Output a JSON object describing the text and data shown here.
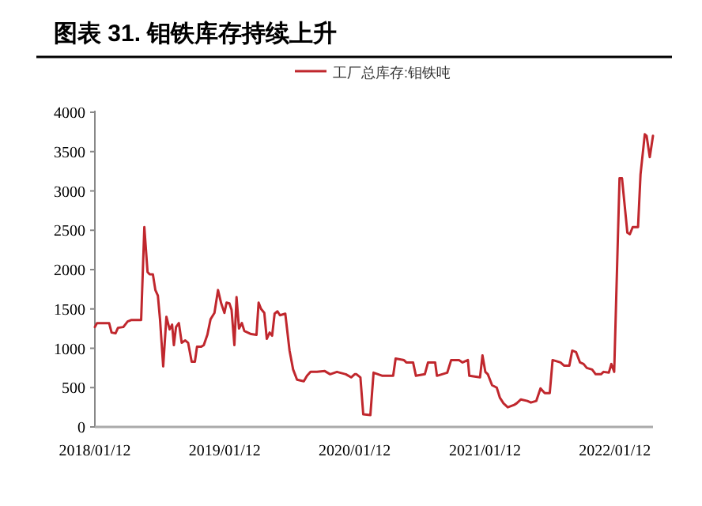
{
  "chart_data": {
    "type": "line",
    "title": "图表 31. 钼铁库存持续上升",
    "x": [
      "2018-01-12",
      "2018-01-18",
      "2018-02-21",
      "2018-02-28",
      "2018-03-11",
      "2018-03-18",
      "2018-04-02",
      "2018-04-14",
      "2018-04-25",
      "2018-05-22",
      "2018-05-31",
      "2018-06-09",
      "2018-06-15",
      "2018-06-24",
      "2018-07-01",
      "2018-07-08",
      "2018-07-14",
      "2018-07-23",
      "2018-08-01",
      "2018-08-10",
      "2018-08-17",
      "2018-08-22",
      "2018-08-28",
      "2018-09-05",
      "2018-09-13",
      "2018-09-23",
      "2018-10-01",
      "2018-10-11",
      "2018-10-20",
      "2018-10-26",
      "2018-11-07",
      "2018-11-14",
      "2018-11-24",
      "2018-12-03",
      "2018-12-14",
      "2018-12-24",
      "2019-01-02",
      "2019-01-11",
      "2019-01-17",
      "2019-01-25",
      "2019-01-31",
      "2019-02-08",
      "2019-02-14",
      "2019-02-21",
      "2019-03-01",
      "2019-03-08",
      "2019-03-27",
      "2019-04-11",
      "2019-04-17",
      "2019-04-24",
      "2019-05-03",
      "2019-05-10",
      "2019-05-18",
      "2019-05-25",
      "2019-06-01",
      "2019-06-09",
      "2019-06-16",
      "2019-07-01",
      "2019-07-13",
      "2019-07-23",
      "2019-08-03",
      "2019-08-22",
      "2019-08-31",
      "2019-09-10",
      "2019-09-28",
      "2019-10-20",
      "2019-11-04",
      "2019-11-23",
      "2019-12-18",
      "2020-01-02",
      "2020-01-12",
      "2020-01-17",
      "2020-01-28",
      "2020-02-05",
      "2020-02-25",
      "2020-03-05",
      "2020-03-30",
      "2020-04-29",
      "2020-05-06",
      "2020-05-29",
      "2020-06-05",
      "2020-06-24",
      "2020-07-02",
      "2020-07-27",
      "2020-08-05",
      "2020-08-25",
      "2020-08-30",
      "2020-09-28",
      "2020-10-09",
      "2020-10-31",
      "2020-11-10",
      "2020-11-25",
      "2020-11-29",
      "2020-12-29",
      "2021-01-05",
      "2021-01-13",
      "2021-01-20",
      "2021-02-01",
      "2021-02-14",
      "2021-02-23",
      "2021-03-05",
      "2021-03-17",
      "2021-04-04",
      "2021-04-11",
      "2021-04-23",
      "2021-05-11",
      "2021-05-21",
      "2021-06-05",
      "2021-06-17",
      "2021-06-29",
      "2021-07-13",
      "2021-07-21",
      "2021-08-12",
      "2021-08-22",
      "2021-09-06",
      "2021-09-14",
      "2021-09-25",
      "2021-10-06",
      "2021-10-16",
      "2021-10-25",
      "2021-11-09",
      "2021-11-19",
      "2021-12-04",
      "2021-12-11",
      "2021-12-26",
      "2022-01-02",
      "2022-01-10",
      "2022-01-25",
      "2022-02-01",
      "2022-02-16",
      "2022-02-23",
      "2022-03-03",
      "2022-03-18",
      "2022-03-25",
      "2022-04-06",
      "2022-04-11",
      "2022-04-20",
      "2022-04-29"
    ],
    "series": [
      {
        "name": "工厂总库存:钼铁吨",
        "color": "#c0272d",
        "values": [
          1270,
          1320,
          1320,
          1200,
          1190,
          1260,
          1270,
          1340,
          1360,
          1360,
          2540,
          1970,
          1940,
          1940,
          1740,
          1670,
          1370,
          770,
          1400,
          1240,
          1300,
          1040,
          1270,
          1320,
          1070,
          1100,
          1070,
          830,
          830,
          1020,
          1020,
          1040,
          1170,
          1370,
          1450,
          1740,
          1570,
          1450,
          1580,
          1570,
          1490,
          1040,
          1650,
          1250,
          1320,
          1220,
          1180,
          1170,
          1580,
          1500,
          1450,
          1120,
          1200,
          1160,
          1440,
          1470,
          1420,
          1440,
          970,
          730,
          600,
          580,
          650,
          700,
          700,
          710,
          670,
          700,
          670,
          630,
          670,
          670,
          630,
          160,
          150,
          690,
          650,
          650,
          870,
          850,
          820,
          820,
          650,
          670,
          820,
          820,
          650,
          690,
          850,
          850,
          820,
          850,
          650,
          630,
          910,
          700,
          670,
          530,
          500,
          370,
          300,
          250,
          280,
          300,
          350,
          330,
          310,
          330,
          490,
          430,
          430,
          850,
          820,
          780,
          780,
          970,
          950,
          820,
          800,
          750,
          730,
          670,
          670,
          700,
          690,
          800,
          700,
          3160,
          3160,
          2470,
          2450,
          2540,
          2540,
          3210,
          3720,
          3700,
          3430,
          3700
        ]
      }
    ],
    "xlim": [
      "2018-01-12",
      "2022-04-29"
    ],
    "xticks": [
      {
        "value": "2018-01-12",
        "label": "2018/01/12"
      },
      {
        "value": "2019-01-12",
        "label": "2019/01/12"
      },
      {
        "value": "2020-01-12",
        "label": "2020/01/12"
      },
      {
        "value": "2021-01-12",
        "label": "2021/01/12"
      },
      {
        "value": "2022-01-12",
        "label": "2022/01/12"
      }
    ],
    "ylim": [
      0,
      4000
    ],
    "yticks": [
      0,
      500,
      1000,
      1500,
      2000,
      2500,
      3000,
      3500,
      4000
    ],
    "legend": "top",
    "grid": false
  }
}
